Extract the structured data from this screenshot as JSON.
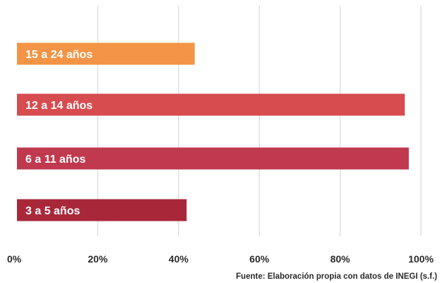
{
  "chart_data": {
    "type": "bar",
    "orientation": "horizontal",
    "categories": [
      "15 a 24 años",
      "12 a 14 años",
      "6 a 11 años",
      "3 a 5 años"
    ],
    "values": [
      44,
      96,
      97,
      42
    ],
    "colors": [
      "#f39446",
      "#d64c4f",
      "#c0394f",
      "#a8283a"
    ],
    "xlim": [
      0,
      100
    ],
    "x_ticks": [
      "0%",
      "20%",
      "40%",
      "60%",
      "80%",
      "100%"
    ],
    "x_tick_values": [
      0,
      20,
      40,
      60,
      80,
      100
    ],
    "grid": "vertical",
    "title": "",
    "xlabel": "",
    "ylabel": "",
    "source": "Fuente: Elaboración propia con datos de INEGI (s.f.)"
  }
}
